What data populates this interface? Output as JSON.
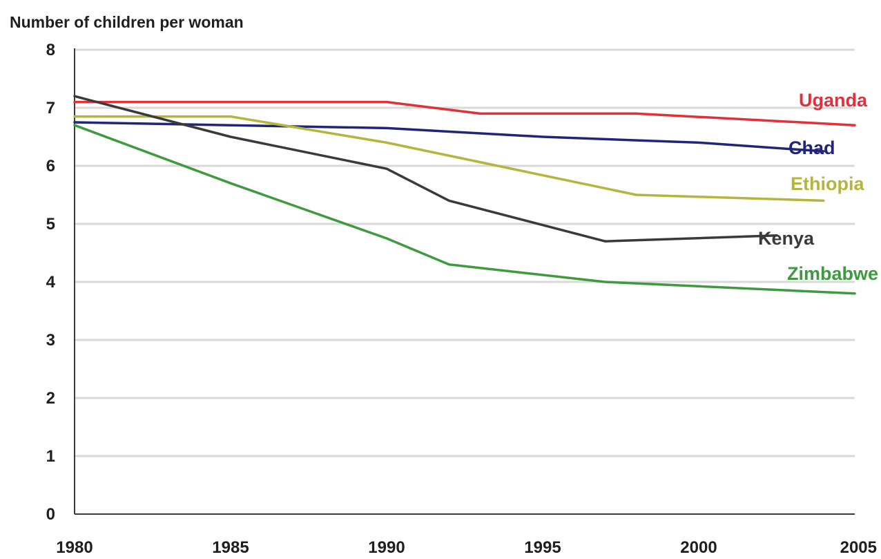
{
  "chart_data": {
    "type": "line",
    "title": "",
    "xlabel": "",
    "ylabel": "Number of children per woman",
    "xlim": [
      1980,
      2005
    ],
    "ylim": [
      0,
      8
    ],
    "x_ticks": [
      1980,
      1985,
      1990,
      1995,
      2000,
      2005
    ],
    "y_ticks": [
      0,
      1,
      2,
      3,
      4,
      5,
      6,
      7,
      8
    ],
    "grid": "horizontal",
    "legend": "inline labels at line ends",
    "series": [
      {
        "name": "Uganda",
        "color": "#e0303a",
        "x": [
          1980,
          1985,
          1990,
          1993,
          1998,
          2005
        ],
        "y": [
          7.1,
          7.1,
          7.1,
          6.9,
          6.9,
          6.7
        ]
      },
      {
        "name": "Chad",
        "color": "#22247a",
        "x": [
          1980,
          1985,
          1990,
          1995,
          2000,
          2004
        ],
        "y": [
          6.75,
          6.7,
          6.65,
          6.5,
          6.4,
          6.25
        ]
      },
      {
        "name": "Ethiopia",
        "color": "#b5b53c",
        "x": [
          1980,
          1985,
          1990,
          1998,
          2004
        ],
        "y": [
          6.85,
          6.85,
          6.4,
          5.5,
          5.4
        ]
      },
      {
        "name": "Kenya",
        "color": "#3a3a3a",
        "x": [
          1980,
          1985,
          1990,
          1992,
          1997,
          2002.5
        ],
        "y": [
          7.2,
          6.5,
          5.95,
          5.4,
          4.7,
          4.8
        ]
      },
      {
        "name": "Zimbabwe",
        "color": "#3f9a3f",
        "x": [
          1980,
          1985,
          1990,
          1992,
          1997,
          2005
        ],
        "y": [
          6.7,
          5.7,
          4.75,
          4.3,
          4.0,
          3.8
        ]
      }
    ]
  }
}
